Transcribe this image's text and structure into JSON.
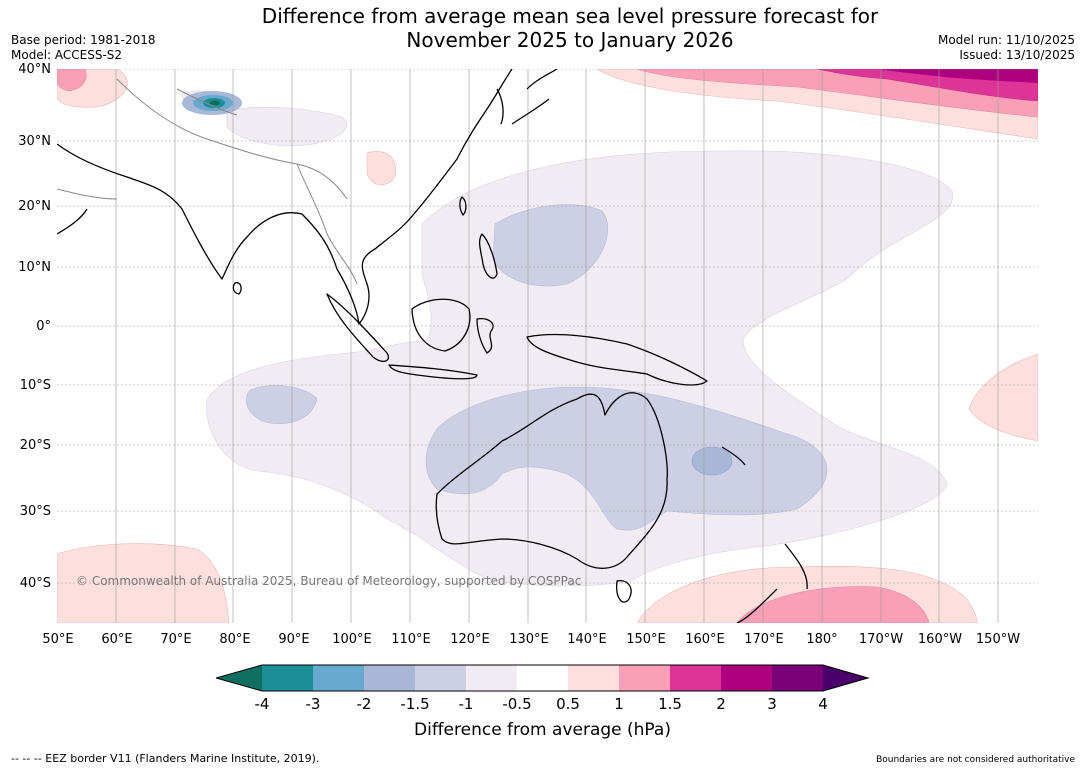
{
  "title_line1": "Difference from average mean sea level pressure forecast for",
  "title_line2": "November 2025 to January 2026",
  "meta_left": [
    "Base period: 1981-2018",
    "Model: ACCESS-S2"
  ],
  "meta_right": [
    "Model run: 11/10/2025",
    "Issued: 13/10/2025"
  ],
  "x_ticks": [
    "50°E",
    "60°E",
    "70°E",
    "80°E",
    "90°E",
    "100°E",
    "110°E",
    "120°E",
    "130°E",
    "140°E",
    "150°E",
    "160°E",
    "170°E",
    "180°",
    "170°W",
    "160°W",
    "150°W"
  ],
  "y_ticks": [
    "40°N",
    "30°N",
    "20°N",
    "10°N",
    "0°",
    "10°S",
    "20°S",
    "30°S",
    "40°S"
  ],
  "copyright": "© Commonwealth of Australia 2025, Bureau of Meteorology, supported by COSPPac",
  "colorbar": {
    "labels": [
      "-4",
      "-3",
      "-2",
      "-1.5",
      "-1",
      "-0.5",
      "0.5",
      "1",
      "1.5",
      "2",
      "3",
      "4"
    ],
    "colors": [
      "#0e6e60",
      "#1c8e98",
      "#68a9d0",
      "#a9b8d6",
      "#cdd0e4",
      "#f1ecf4",
      "#ffffff",
      "#fde0dd",
      "#fa9fb5",
      "#dd3497",
      "#ae017e",
      "#7a0177",
      "#49006a"
    ],
    "title": "Difference from average (hPa)"
  },
  "footer_left": "--  --  -- EEZ border V11 (Flanders Marine Institute, 2019).",
  "footer_right": "Boundaries are not considered authoritative"
}
